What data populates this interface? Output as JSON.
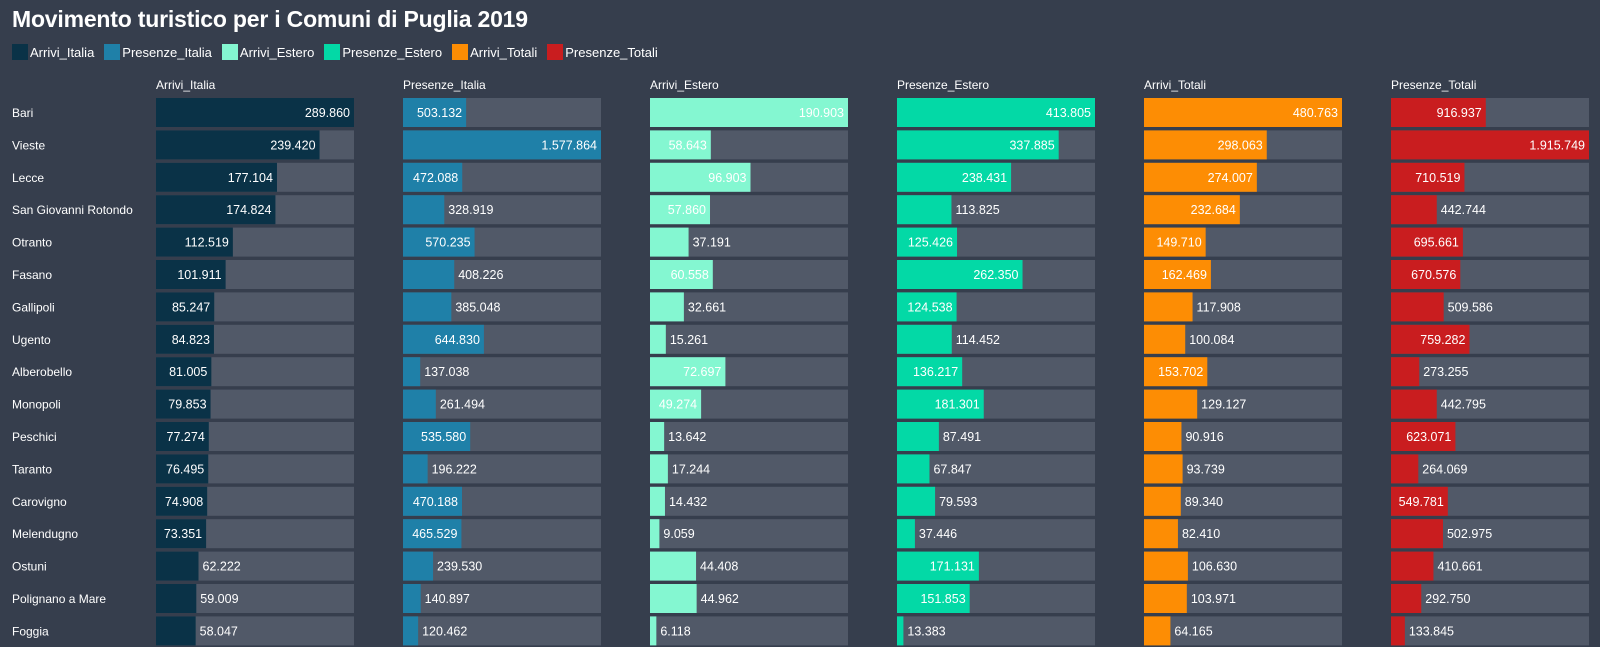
{
  "chart_data": {
    "type": "bar",
    "title": "Movimento turistico per i Comuni di Puglia 2019",
    "categories": [
      "Bari",
      "Vieste",
      "Lecce",
      "San Giovanni Rotondo",
      "Otranto",
      "Fasano",
      "Gallipoli",
      "Ugento",
      "Alberobello",
      "Monopoli",
      "Peschici",
      "Taranto",
      "Carovigno",
      "Melendugno",
      "Ostuni",
      "Polignano a Mare",
      "Foggia"
    ],
    "legend_position": "top-left",
    "grid": false,
    "series": [
      {
        "name": "Arrivi_Italia",
        "color": "#0a3247",
        "xlim": [
          0,
          289860
        ],
        "values": [
          289860,
          239420,
          177104,
          174824,
          112519,
          101911,
          85247,
          84823,
          81005,
          79853,
          77274,
          76495,
          74908,
          73351,
          62222,
          59009,
          58047
        ],
        "labels": [
          "289.860",
          "239.420",
          "177.104",
          "174.824",
          "112.519",
          "101.911",
          "85.247",
          "84.823",
          "81.005",
          "79.853",
          "77.274",
          "76.495",
          "74.908",
          "73.351",
          "62.222",
          "59.009",
          "58.047"
        ]
      },
      {
        "name": "Presenze_Italia",
        "color": "#1f80a8",
        "xlim": [
          0,
          1577864
        ],
        "values": [
          503132,
          1577864,
          472088,
          328919,
          570235,
          408226,
          385048,
          644830,
          137038,
          261494,
          535580,
          196222,
          470188,
          465529,
          239530,
          140897,
          120462
        ],
        "labels": [
          "503.132",
          "1.577.864",
          "472.088",
          "328.919",
          "570.235",
          "408.226",
          "385.048",
          "644.830",
          "137.038",
          "261.494",
          "535.580",
          "196.222",
          "470.188",
          "465.529",
          "239.530",
          "140.897",
          "120.462"
        ]
      },
      {
        "name": "Arrivi_Estero",
        "color": "#84f7d1",
        "xlim": [
          0,
          190903
        ],
        "values": [
          190903,
          58643,
          96903,
          57860,
          37191,
          60558,
          32661,
          15261,
          72697,
          49274,
          13642,
          17244,
          14432,
          9059,
          44408,
          44962,
          6118
        ],
        "labels": [
          "190.903",
          "58.643",
          "96.903",
          "57.860",
          "37.191",
          "60.558",
          "32.661",
          "15.261",
          "72.697",
          "49.274",
          "13.642",
          "17.244",
          "14.432",
          "9.059",
          "44.408",
          "44.962",
          "6.118"
        ]
      },
      {
        "name": "Presenze_Estero",
        "color": "#03d9a6",
        "xlim": [
          0,
          413805
        ],
        "values": [
          413805,
          337885,
          238431,
          113825,
          125426,
          262350,
          124538,
          114452,
          136217,
          181301,
          87491,
          67847,
          79593,
          37446,
          171131,
          151853,
          13383
        ],
        "labels": [
          "413.805",
          "337.885",
          "238.431",
          "113.825",
          "125.426",
          "262.350",
          "124.538",
          "114.452",
          "136.217",
          "181.301",
          "87.491",
          "67.847",
          "79.593",
          "37.446",
          "171.131",
          "151.853",
          "13.383"
        ]
      },
      {
        "name": "Arrivi_Totali",
        "color": "#fd8d04",
        "xlim": [
          0,
          480763
        ],
        "values": [
          480763,
          298063,
          274007,
          232684,
          149710,
          162469,
          117908,
          100084,
          153702,
          129127,
          90916,
          93739,
          89340,
          82410,
          106630,
          103971,
          64165
        ],
        "labels": [
          "480.763",
          "298.063",
          "274.007",
          "232.684",
          "149.710",
          "162.469",
          "117.908",
          "100.084",
          "153.702",
          "129.127",
          "90.916",
          "93.739",
          "89.340",
          "82.410",
          "106.630",
          "103.971",
          "64.165"
        ]
      },
      {
        "name": "Presenze_Totali",
        "color": "#c91d1f",
        "xlim": [
          0,
          1915749
        ],
        "values": [
          916937,
          1915749,
          710519,
          442744,
          695661,
          670576,
          509586,
          759282,
          273255,
          442795,
          623071,
          264069,
          549781,
          502975,
          410661,
          292750,
          133845
        ],
        "labels": [
          "916.937",
          "1.915.749",
          "710.519",
          "442.744",
          "695.661",
          "670.576",
          "509.586",
          "759.282",
          "273.255",
          "442.795",
          "623.071",
          "264.069",
          "549.781",
          "502.975",
          "410.661",
          "292.750",
          "133.845"
        ]
      }
    ]
  }
}
